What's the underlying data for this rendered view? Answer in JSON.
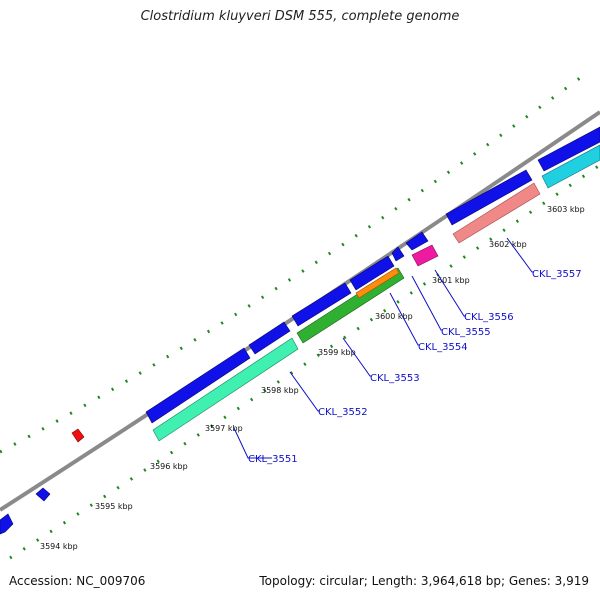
{
  "title": "Clostridium kluyveri DSM 555, complete genome",
  "accession": "Accession: NC_009706",
  "summary": "Topology: circular; Length: 3,964,618 bp; Genes: 3,919",
  "colors": {
    "backbone": "#8a8a8a",
    "tick": "#1f8a1f",
    "cds_forward": "#1010e8",
    "label": "#1010c8"
  },
  "tick_labels": [
    "3594 kbp",
    "3595 kbp",
    "3596 kbp",
    "3597 kbp",
    "3598 kbp",
    "3599 kbp",
    "3600 kbp",
    "3601 kbp",
    "3602 kbp",
    "3603 kbp"
  ],
  "genes": [
    {
      "name": "CKL_3551",
      "color": "#40f0b0"
    },
    {
      "name": "CKL_3552",
      "color": "#40f0b0"
    },
    {
      "name": "CKL_3553",
      "color": "#30b030"
    },
    {
      "name": "CKL_3554",
      "color": "#ff8c10"
    },
    {
      "name": "CKL_3555",
      "color": "#30b030"
    },
    {
      "name": "CKL_3556",
      "color": "#ee1aa0"
    },
    {
      "name": "CKL_3557",
      "color": "#f08888"
    }
  ],
  "extra_feature_colors": {
    "cyan_band": "#20d0e0",
    "red_marker": "#ee1111"
  }
}
